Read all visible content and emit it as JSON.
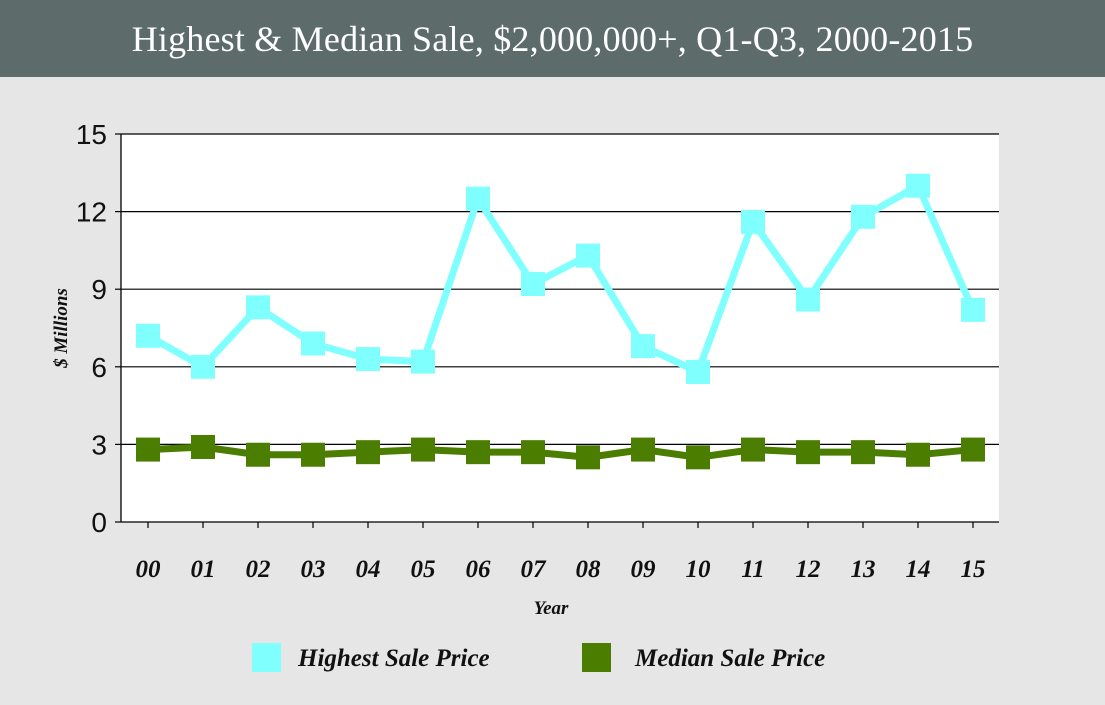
{
  "header": {
    "title": "Highest & Median Sale, $2,000,000+, Q1-Q3, 2000-2015"
  },
  "colors": {
    "header_bg": "#5e6b6b",
    "page_bg": "#e6e6e6",
    "plot_bg": "#ffffff",
    "highest": "#80ffff",
    "median": "#4a7d00"
  },
  "chart_data": {
    "type": "line",
    "title": "Highest & Median Sale, $2,000,000+, Q1-Q3, 2000-2015",
    "xlabel": "Year",
    "ylabel": "$ Millions",
    "categories": [
      "00",
      "01",
      "02",
      "03",
      "04",
      "05",
      "06",
      "07",
      "08",
      "09",
      "10",
      "11",
      "12",
      "13",
      "14",
      "15"
    ],
    "yticks": [
      "0",
      "3",
      "6",
      "9",
      "12",
      "15"
    ],
    "ylim": [
      0,
      15
    ],
    "grid": true,
    "legend_position": "bottom",
    "series": [
      {
        "name": "Highest Sale Price",
        "color": "#80ffff",
        "values": [
          7.2,
          6.0,
          8.3,
          6.9,
          6.3,
          6.2,
          12.5,
          9.2,
          10.3,
          6.8,
          5.8,
          11.6,
          8.6,
          11.8,
          13.0,
          8.2
        ]
      },
      {
        "name": "Median Sale Price",
        "color": "#4a7d00",
        "values": [
          2.8,
          2.9,
          2.6,
          2.6,
          2.7,
          2.8,
          2.7,
          2.7,
          2.5,
          2.8,
          2.5,
          2.8,
          2.7,
          2.7,
          2.6,
          2.8
        ]
      }
    ]
  }
}
